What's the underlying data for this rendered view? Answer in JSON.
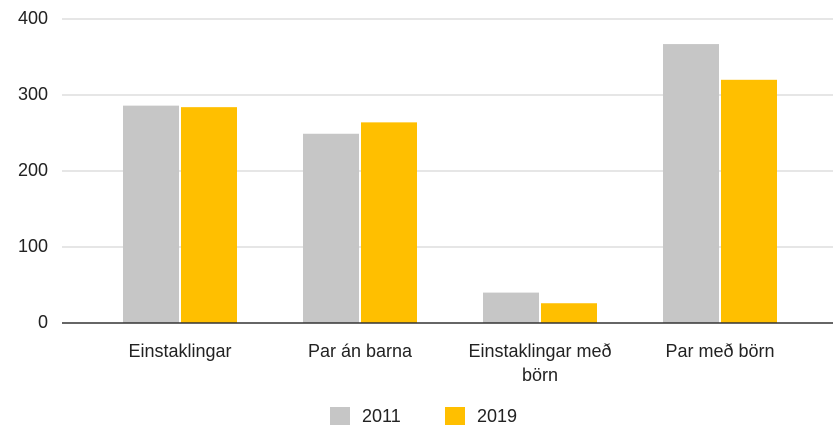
{
  "chart_data": {
    "type": "bar",
    "categories": [
      "Einstaklingar",
      "Par án barna",
      "Einstaklingar með börn",
      "Par með börn"
    ],
    "series": [
      {
        "name": "2011",
        "color": "#c6c6c6",
        "values": [
          286,
          249,
          40,
          367
        ]
      },
      {
        "name": "2019",
        "color": "#ffbf00",
        "values": [
          284,
          264,
          26,
          320
        ]
      }
    ],
    "ylim": [
      0,
      400
    ],
    "yticks": [
      0,
      100,
      200,
      300,
      400
    ],
    "grid": true,
    "legend": "bottom"
  }
}
